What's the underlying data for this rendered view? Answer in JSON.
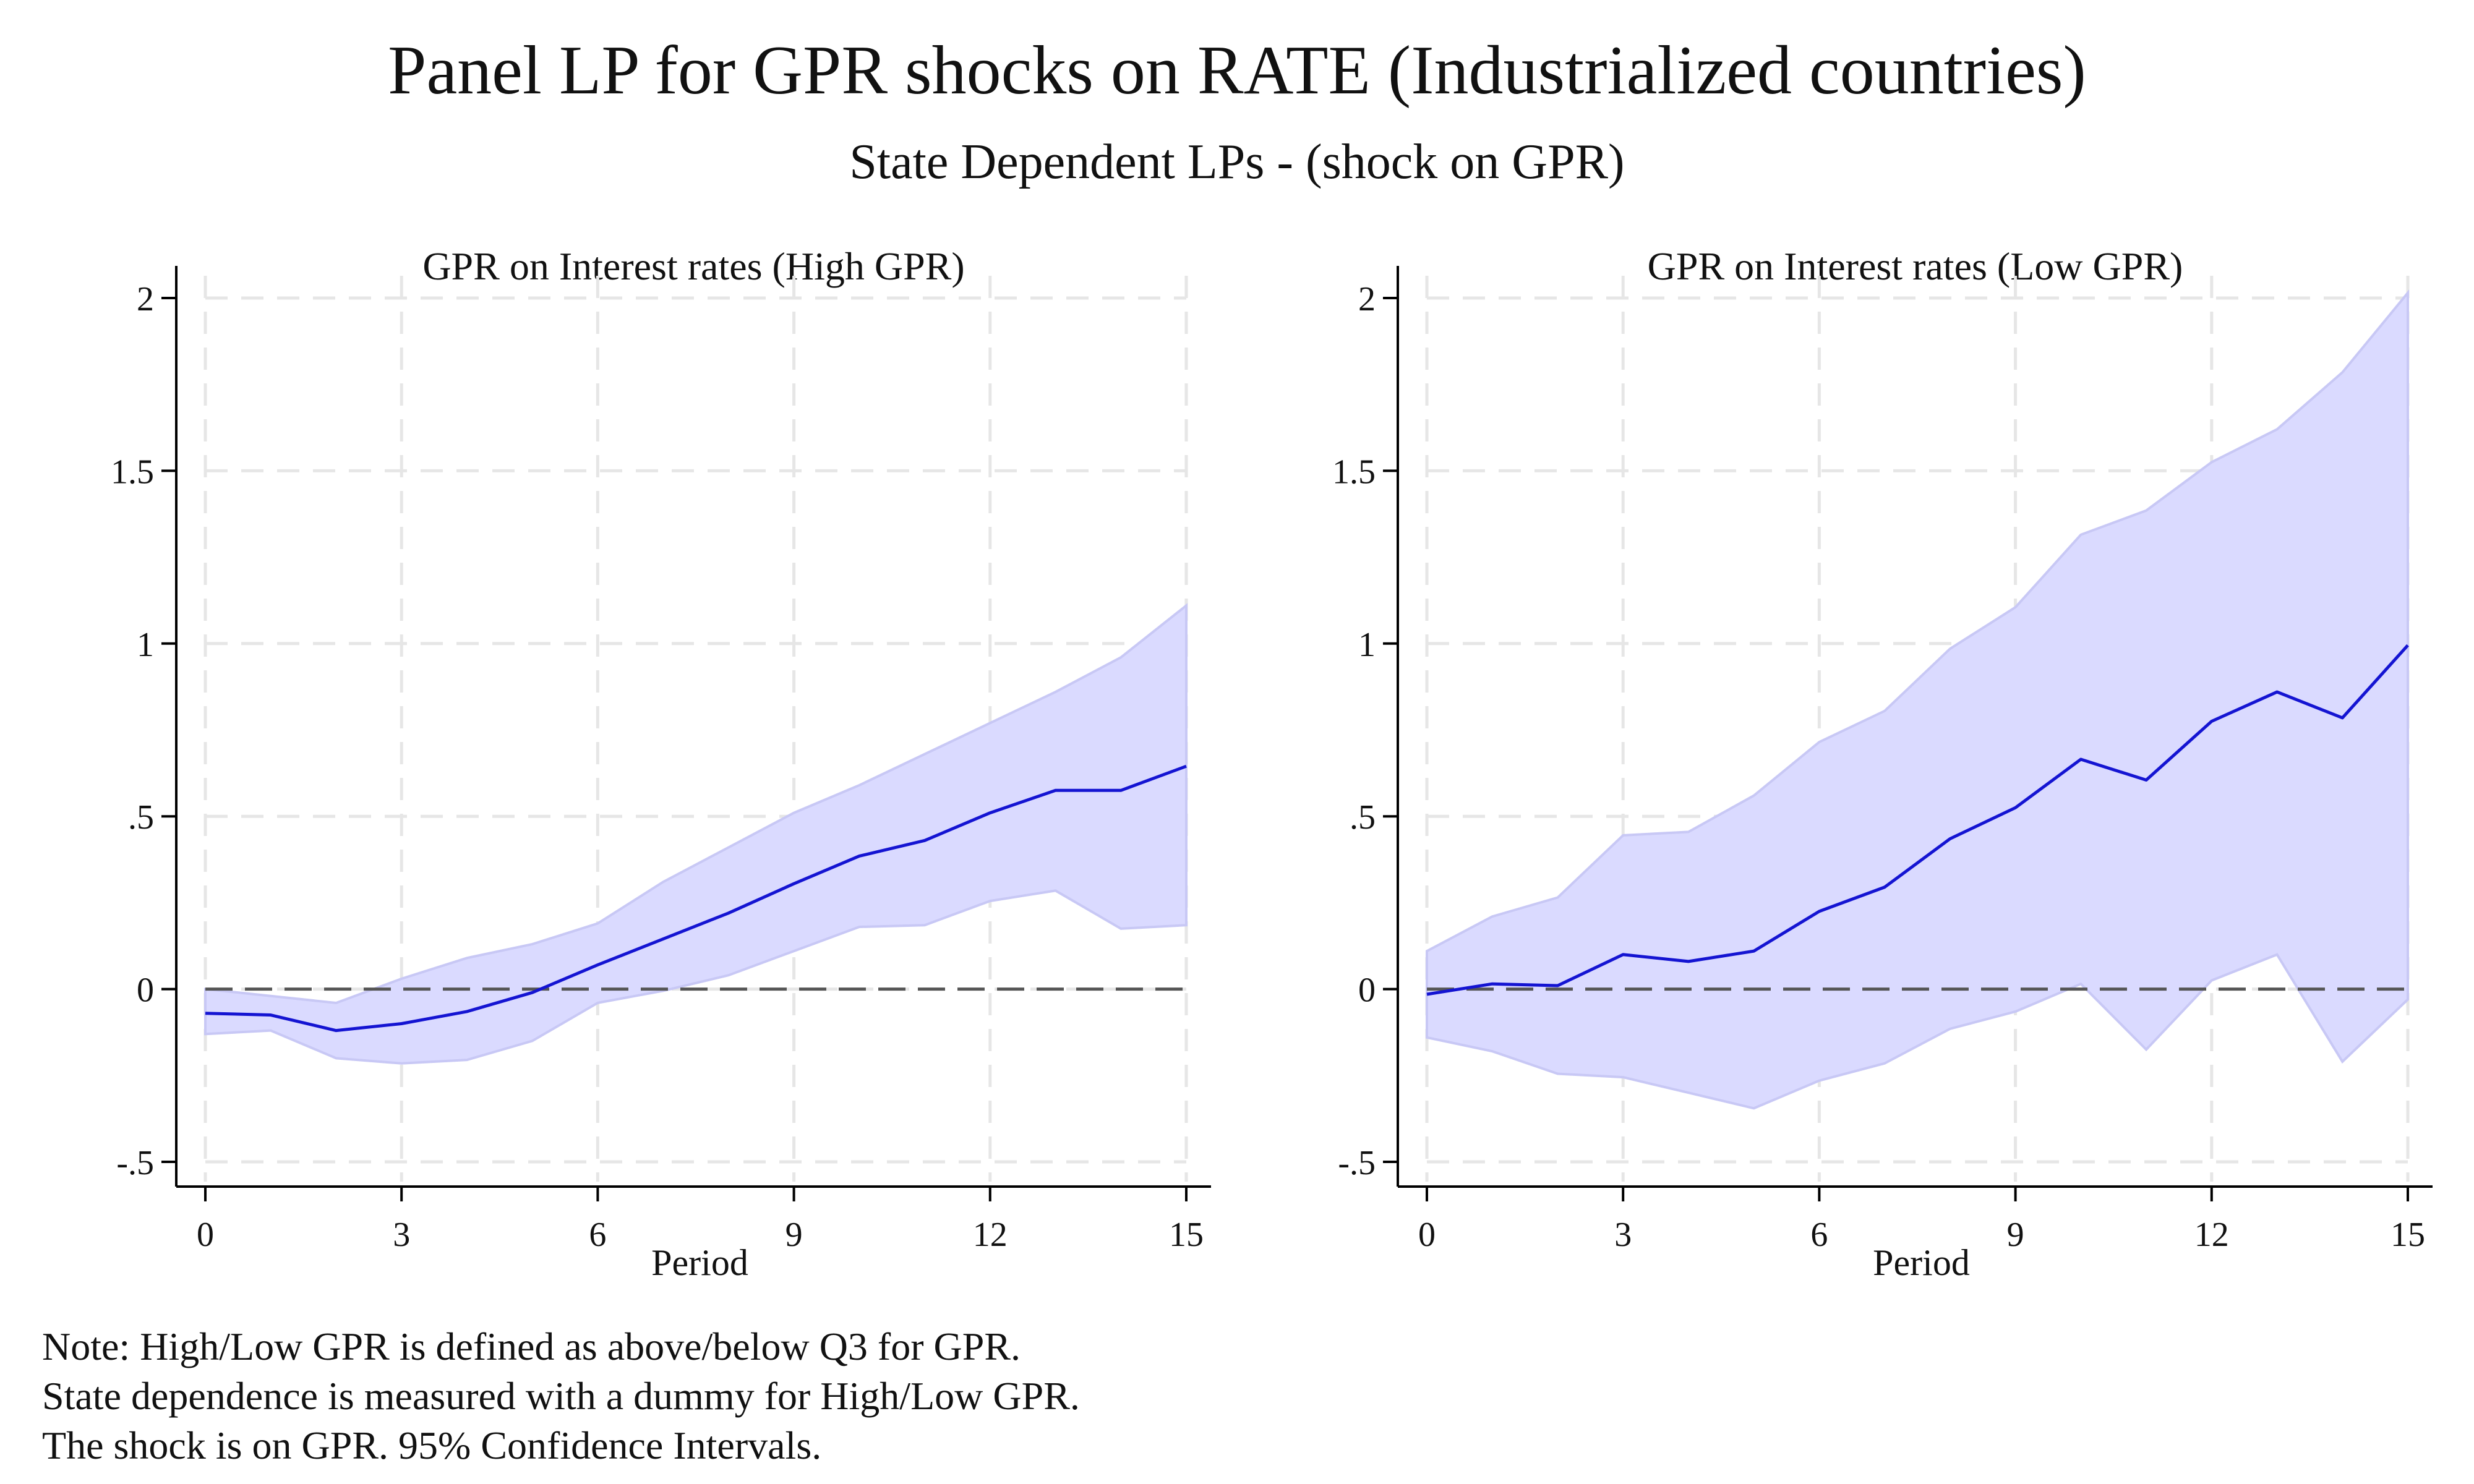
{
  "title": "Panel LP for GPR shocks on RATE (Industrialized countries)",
  "subtitle": "State Dependent LPs - (shock on GPR)",
  "notes": [
    "Note: High/Low GPR is defined as above/below Q3 for GPR.",
    "State dependence is measured with a dummy for High/Low GPR.",
    "The shock is on GPR. 95% Confidence Intervals."
  ],
  "colors": {
    "line": "#1414d2",
    "band": "#dadaff",
    "band_edge": "#c8c8f5",
    "zero_line": "#555555",
    "grid": "#e6e6e6"
  },
  "chart_data": [
    {
      "type": "line",
      "title": "GPR on Interest rates (High GPR)",
      "xlabel": "Period",
      "ylabel": "",
      "xlim": [
        0,
        15
      ],
      "ylim": [
        -0.5,
        2
      ],
      "x_ticks": [
        0,
        3,
        6,
        9,
        12,
        15
      ],
      "y_ticks": [
        -0.5,
        0,
        0.5,
        1,
        1.5,
        2
      ],
      "y_tick_labels": [
        "-.5",
        "0",
        ".5",
        "1",
        "1.5",
        "2"
      ],
      "grid": true,
      "x": [
        0,
        1,
        2,
        3,
        4,
        5,
        6,
        7,
        8,
        9,
        10,
        11,
        12,
        13,
        14,
        15
      ],
      "series": [
        {
          "values": [
            -0.07,
            -0.075,
            -0.12,
            -0.1,
            -0.065,
            -0.01,
            0.07,
            0.145,
            0.22,
            0.305,
            0.385,
            0.43,
            0.51,
            0.575,
            0.575,
            0.645
          ]
        }
      ],
      "ci_upper": [
        0.0,
        -0.02,
        -0.04,
        0.03,
        0.09,
        0.13,
        0.19,
        0.31,
        0.41,
        0.51,
        0.59,
        0.68,
        0.77,
        0.86,
        0.96,
        1.11
      ],
      "ci_lower": [
        -0.13,
        -0.12,
        -0.2,
        -0.215,
        -0.205,
        -0.15,
        -0.04,
        -0.005,
        0.04,
        0.11,
        0.18,
        0.185,
        0.255,
        0.285,
        0.175,
        0.185
      ],
      "reference_line": 0
    },
    {
      "type": "line",
      "title": "GPR on Interest rates (Low GPR)",
      "xlabel": "Period",
      "ylabel": "",
      "xlim": [
        0,
        15
      ],
      "ylim": [
        -0.5,
        2
      ],
      "x_ticks": [
        0,
        3,
        6,
        9,
        12,
        15
      ],
      "y_ticks": [
        -0.5,
        0,
        0.5,
        1,
        1.5,
        2
      ],
      "y_tick_labels": [
        "-.5",
        "0",
        ".5",
        "1",
        "1.5",
        "2"
      ],
      "grid": true,
      "x": [
        0,
        1,
        2,
        3,
        4,
        5,
        6,
        7,
        8,
        9,
        10,
        11,
        12,
        13,
        14,
        15
      ],
      "series": [
        {
          "values": [
            -0.015,
            0.015,
            0.01,
            0.1,
            0.08,
            0.11,
            0.225,
            0.295,
            0.435,
            0.525,
            0.665,
            0.605,
            0.775,
            0.86,
            0.785,
            0.995
          ]
        }
      ],
      "ci_upper": [
        0.11,
        0.21,
        0.265,
        0.445,
        0.455,
        0.56,
        0.715,
        0.805,
        0.985,
        1.105,
        1.315,
        1.385,
        1.525,
        1.62,
        1.785,
        2.015
      ],
      "ci_lower": [
        -0.14,
        -0.18,
        -0.245,
        -0.255,
        -0.3,
        -0.345,
        -0.265,
        -0.215,
        -0.115,
        -0.065,
        0.015,
        -0.175,
        0.025,
        0.1,
        -0.21,
        -0.03
      ],
      "reference_line": 0
    }
  ]
}
